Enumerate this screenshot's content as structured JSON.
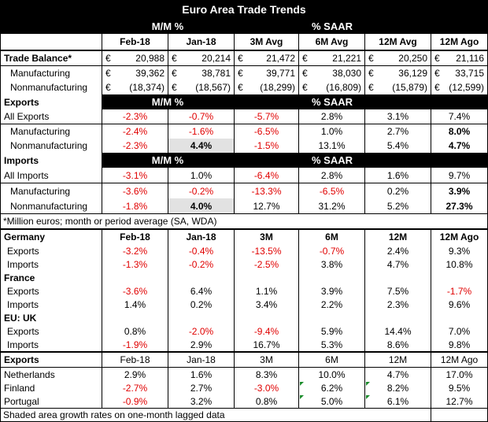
{
  "title": "Euro Area Trade Trends",
  "groups": {
    "mm": "M/M %",
    "saar": "% SAAR"
  },
  "cols": [
    "Feb-18",
    "Jan-18",
    "3M Avg",
    "6M Avg",
    "12M Avg",
    "12M Ago"
  ],
  "currency": "€",
  "balance": [
    {
      "label": "Trade Balance*",
      "v": [
        "20,988",
        "20,214",
        "21,472",
        "21,221",
        "20,250",
        "21,116"
      ]
    },
    {
      "label": "Manufacturing",
      "v": [
        "39,362",
        "38,781",
        "39,771",
        "38,030",
        "36,129",
        "33,715"
      ]
    },
    {
      "label": "Nonmanufacturing",
      "v": [
        "(18,374)",
        "(18,567)",
        "(18,299)",
        "(16,809)",
        "(15,879)",
        "(12,599)"
      ]
    }
  ],
  "exports_section": {
    "label": "Exports",
    "rows": [
      {
        "label": "All Exports",
        "v": [
          "-2.3%",
          "-0.7%",
          "-5.7%",
          "2.8%",
          "3.1%",
          "7.4%"
        ]
      },
      {
        "label": "Manufacturing",
        "v": [
          "-2.4%",
          "-1.6%",
          "-6.5%",
          "1.0%",
          "2.7%",
          "8.0%"
        ]
      },
      {
        "label": "Nonmanufacturing",
        "v": [
          "-2.3%",
          "4.4%",
          "-1.5%",
          "13.1%",
          "5.4%",
          "4.7%"
        ]
      }
    ]
  },
  "imports_section": {
    "label": "Imports",
    "rows": [
      {
        "label": "All Imports",
        "v": [
          "-3.1%",
          "1.0%",
          "-6.4%",
          "2.8%",
          "1.6%",
          "9.7%"
        ]
      },
      {
        "label": "Manufacturing",
        "v": [
          "-3.6%",
          "-0.2%",
          "-13.3%",
          "-6.5%",
          "0.2%",
          "3.9%"
        ]
      },
      {
        "label": "Nonmanufacturing",
        "v": [
          "-1.8%",
          "4.0%",
          "12.7%",
          "31.2%",
          "5.2%",
          "27.3%"
        ]
      }
    ]
  },
  "footnote": "*Million euros; month or period average (SA, WDA)",
  "germany": {
    "label": "Germany",
    "cols": [
      "Feb-18",
      "Jan-18",
      "3M",
      "6M",
      "12M",
      "12M Ago"
    ],
    "rows": [
      {
        "label": "Exports",
        "v": [
          "-3.2%",
          "-0.4%",
          "-13.5%",
          "-0.7%",
          "2.4%",
          "9.3%"
        ]
      },
      {
        "label": "Imports",
        "v": [
          "-1.3%",
          "-0.2%",
          "-2.5%",
          "3.8%",
          "4.7%",
          "10.8%"
        ]
      }
    ]
  },
  "france": {
    "label": "France",
    "rows": [
      {
        "label": "Exports",
        "v": [
          "-3.6%",
          "6.4%",
          "1.1%",
          "3.9%",
          "7.5%",
          "-1.7%"
        ]
      },
      {
        "label": "Imports",
        "v": [
          "1.4%",
          "0.2%",
          "3.4%",
          "2.2%",
          "2.3%",
          "9.6%"
        ]
      }
    ]
  },
  "uk": {
    "label": "EU: UK",
    "rows": [
      {
        "label": "Exports",
        "v": [
          "0.8%",
          "-2.0%",
          "-9.4%",
          "5.9%",
          "14.4%",
          "7.0%"
        ]
      },
      {
        "label": "Imports",
        "v": [
          "-1.9%",
          "2.9%",
          "16.7%",
          "5.3%",
          "8.6%",
          "9.8%"
        ]
      }
    ]
  },
  "country_exports": {
    "label": "Exports",
    "cols": [
      "Feb-18",
      "Jan-18",
      "3M",
      "6M",
      "12M",
      "12M Ago"
    ],
    "rows": [
      {
        "label": "Netherlands",
        "v": [
          "2.9%",
          "1.6%",
          "8.3%",
          "10.0%",
          "4.7%",
          "17.0%"
        ]
      },
      {
        "label": "Finland",
        "v": [
          "-2.7%",
          "2.7%",
          "-3.0%",
          "6.2%",
          "8.2%",
          "9.5%"
        ]
      },
      {
        "label": "Portugal",
        "v": [
          "-0.9%",
          "3.2%",
          "0.8%",
          "5.0%",
          "6.1%",
          "12.7%"
        ]
      }
    ]
  },
  "shading_note": "Shaded area growth rates on one-month lagged data",
  "colors": {
    "negative": "#e00000",
    "header_bg": "#000000",
    "shaded": "#e2e2e2",
    "error_tick": "#1a8a2a"
  }
}
